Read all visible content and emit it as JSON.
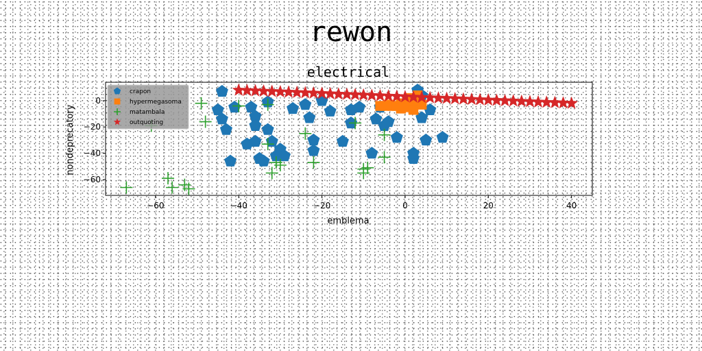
{
  "figure_title": "rewon",
  "chart_data": {
    "type": "scatter",
    "title": "electrical",
    "xlabel": "emblema",
    "ylabel": "nondeprecatory",
    "xlim": [
      -72,
      45
    ],
    "ylim": [
      -72,
      14
    ],
    "xticks": [
      -60,
      -40,
      -20,
      0,
      20,
      40
    ],
    "yticks": [
      -60,
      -40,
      -20,
      0
    ],
    "grid": false,
    "legend_position": "top-left",
    "series": [
      {
        "name": "crapon",
        "color": "#1f77b4",
        "marker": "pentagon",
        "points": [
          [
            -44,
            7
          ],
          [
            -45,
            -7
          ],
          [
            -44,
            -14
          ],
          [
            -43,
            -22
          ],
          [
            -42,
            -46
          ],
          [
            -41,
            -5
          ],
          [
            -38,
            -33
          ],
          [
            -37,
            -5
          ],
          [
            -36,
            -12
          ],
          [
            -36,
            -19
          ],
          [
            -36,
            -31
          ],
          [
            -35,
            -44
          ],
          [
            -34,
            -46
          ],
          [
            -33,
            -1
          ],
          [
            -33,
            -22
          ],
          [
            -32,
            -31
          ],
          [
            -31,
            -42
          ],
          [
            -30,
            -37
          ],
          [
            -29,
            -42
          ],
          [
            -27,
            -6
          ],
          [
            -24,
            -3
          ],
          [
            -23,
            -13
          ],
          [
            -22,
            -30
          ],
          [
            -22,
            -38
          ],
          [
            -20,
            0
          ],
          [
            -18,
            -8
          ],
          [
            -15,
            -31
          ],
          [
            -13,
            -7
          ],
          [
            -13,
            -17
          ],
          [
            -11,
            -5
          ],
          [
            -8,
            -40
          ],
          [
            -7,
            -14
          ],
          [
            -6,
            -5
          ],
          [
            -5,
            -19
          ],
          [
            -4,
            -16
          ],
          [
            -2,
            -28
          ],
          [
            2,
            -44
          ],
          [
            2,
            -40
          ],
          [
            3,
            8
          ],
          [
            4,
            4
          ],
          [
            4,
            -13
          ],
          [
            5,
            -30
          ],
          [
            6,
            -7
          ],
          [
            9,
            -28
          ]
        ]
      },
      {
        "name": "hypermegasoma",
        "color": "#ff7f0e",
        "marker": "square",
        "points": [
          [
            -6,
            -4
          ],
          [
            -5,
            -4
          ],
          [
            -4,
            -3
          ],
          [
            -3,
            -4
          ],
          [
            -2,
            -4
          ],
          [
            -1,
            -2
          ],
          [
            0,
            -4
          ],
          [
            1,
            -5
          ],
          [
            2,
            -3
          ],
          [
            3,
            -1
          ],
          [
            4,
            -3
          ],
          [
            1,
            2
          ],
          [
            2,
            -7
          ],
          [
            -1,
            -6
          ],
          [
            3,
            4
          ]
        ]
      },
      {
        "name": "matambala",
        "color": "#2ca02c",
        "marker": "plus",
        "points": [
          [
            -67,
            -66
          ],
          [
            -61,
            -19
          ],
          [
            -57,
            -59
          ],
          [
            -56,
            -66
          ],
          [
            -53,
            -64
          ],
          [
            -52,
            -67
          ],
          [
            -49,
            -2
          ],
          [
            -48,
            -16
          ],
          [
            -40,
            -4
          ],
          [
            -33,
            -3
          ],
          [
            -33,
            -33
          ],
          [
            -32,
            -55
          ],
          [
            -31,
            -47
          ],
          [
            -30,
            -49
          ],
          [
            -24,
            -25
          ],
          [
            -22,
            -47
          ],
          [
            -12,
            -17
          ],
          [
            -10,
            -52
          ],
          [
            -10,
            -55
          ],
          [
            -9,
            -51
          ],
          [
            -5,
            -43
          ],
          [
            -5,
            -26
          ]
        ]
      },
      {
        "name": "outquoting",
        "color": "#d62728",
        "marker": "star",
        "points": [
          [
            -40,
            8.0
          ],
          [
            -38,
            7.75
          ],
          [
            -36,
            7.5
          ],
          [
            -34,
            7.25
          ],
          [
            -32,
            7.0
          ],
          [
            -30,
            6.75
          ],
          [
            -28,
            6.5
          ],
          [
            -26,
            6.25
          ],
          [
            -24,
            6.0
          ],
          [
            -22,
            5.75
          ],
          [
            -20,
            5.5
          ],
          [
            -18,
            5.25
          ],
          [
            -16,
            5.0
          ],
          [
            -14,
            4.75
          ],
          [
            -12,
            4.5
          ],
          [
            -10,
            4.25
          ],
          [
            -8,
            4.0
          ],
          [
            -6,
            3.75
          ],
          [
            -4,
            3.5
          ],
          [
            -2,
            3.25
          ],
          [
            0,
            3.0
          ],
          [
            2,
            2.75
          ],
          [
            4,
            2.5
          ],
          [
            6,
            2.25
          ],
          [
            8,
            2.0
          ],
          [
            10,
            1.75
          ],
          [
            12,
            1.5
          ],
          [
            14,
            1.25
          ],
          [
            16,
            1.0
          ],
          [
            18,
            0.75
          ],
          [
            20,
            0.5
          ],
          [
            22,
            0.25
          ],
          [
            24,
            0.0
          ],
          [
            26,
            -0.25
          ],
          [
            28,
            -0.5
          ],
          [
            30,
            -0.75
          ],
          [
            32,
            -1.0
          ],
          [
            34,
            -1.25
          ],
          [
            36,
            -1.5
          ],
          [
            38,
            -1.75
          ],
          [
            40,
            -2.0
          ]
        ]
      }
    ]
  }
}
